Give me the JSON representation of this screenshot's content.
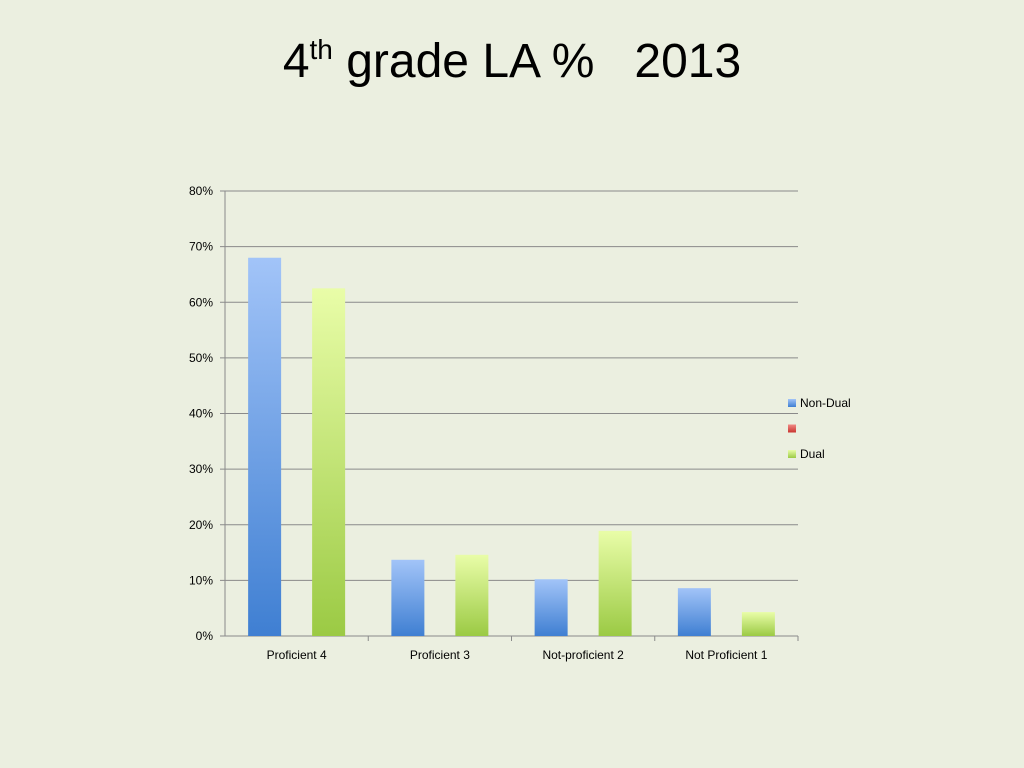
{
  "slide": {
    "title_prefix": "4",
    "title_sup": "th",
    "title_suffix": " grade LA %   2013"
  },
  "chart_data": {
    "type": "bar",
    "categories": [
      "Proficient 4",
      "Proficient 3",
      "Not-proficient 2",
      "Not Proficient 1"
    ],
    "series": [
      {
        "name": "Non-Dual",
        "values": [
          0.68,
          0.137,
          0.102,
          0.086
        ],
        "color_top": "#a2c4f8",
        "color_bottom": "#3f7fd2"
      },
      {
        "name": "",
        "values": [
          null,
          null,
          null,
          null
        ],
        "color_top": "#f08a85",
        "color_bottom": "#c9342f"
      },
      {
        "name": "Dual",
        "values": [
          0.625,
          0.146,
          0.189,
          0.043
        ],
        "color_top": "#e9fda8",
        "color_bottom": "#9bca44"
      }
    ],
    "y_ticks": [
      "0%",
      "10%",
      "20%",
      "30%",
      "40%",
      "50%",
      "60%",
      "70%",
      "80%"
    ],
    "ylim": [
      0,
      0.8
    ],
    "grid": true,
    "legend": "right",
    "title": "4th grade LA %   2013",
    "xlabel": "",
    "ylabel": ""
  }
}
